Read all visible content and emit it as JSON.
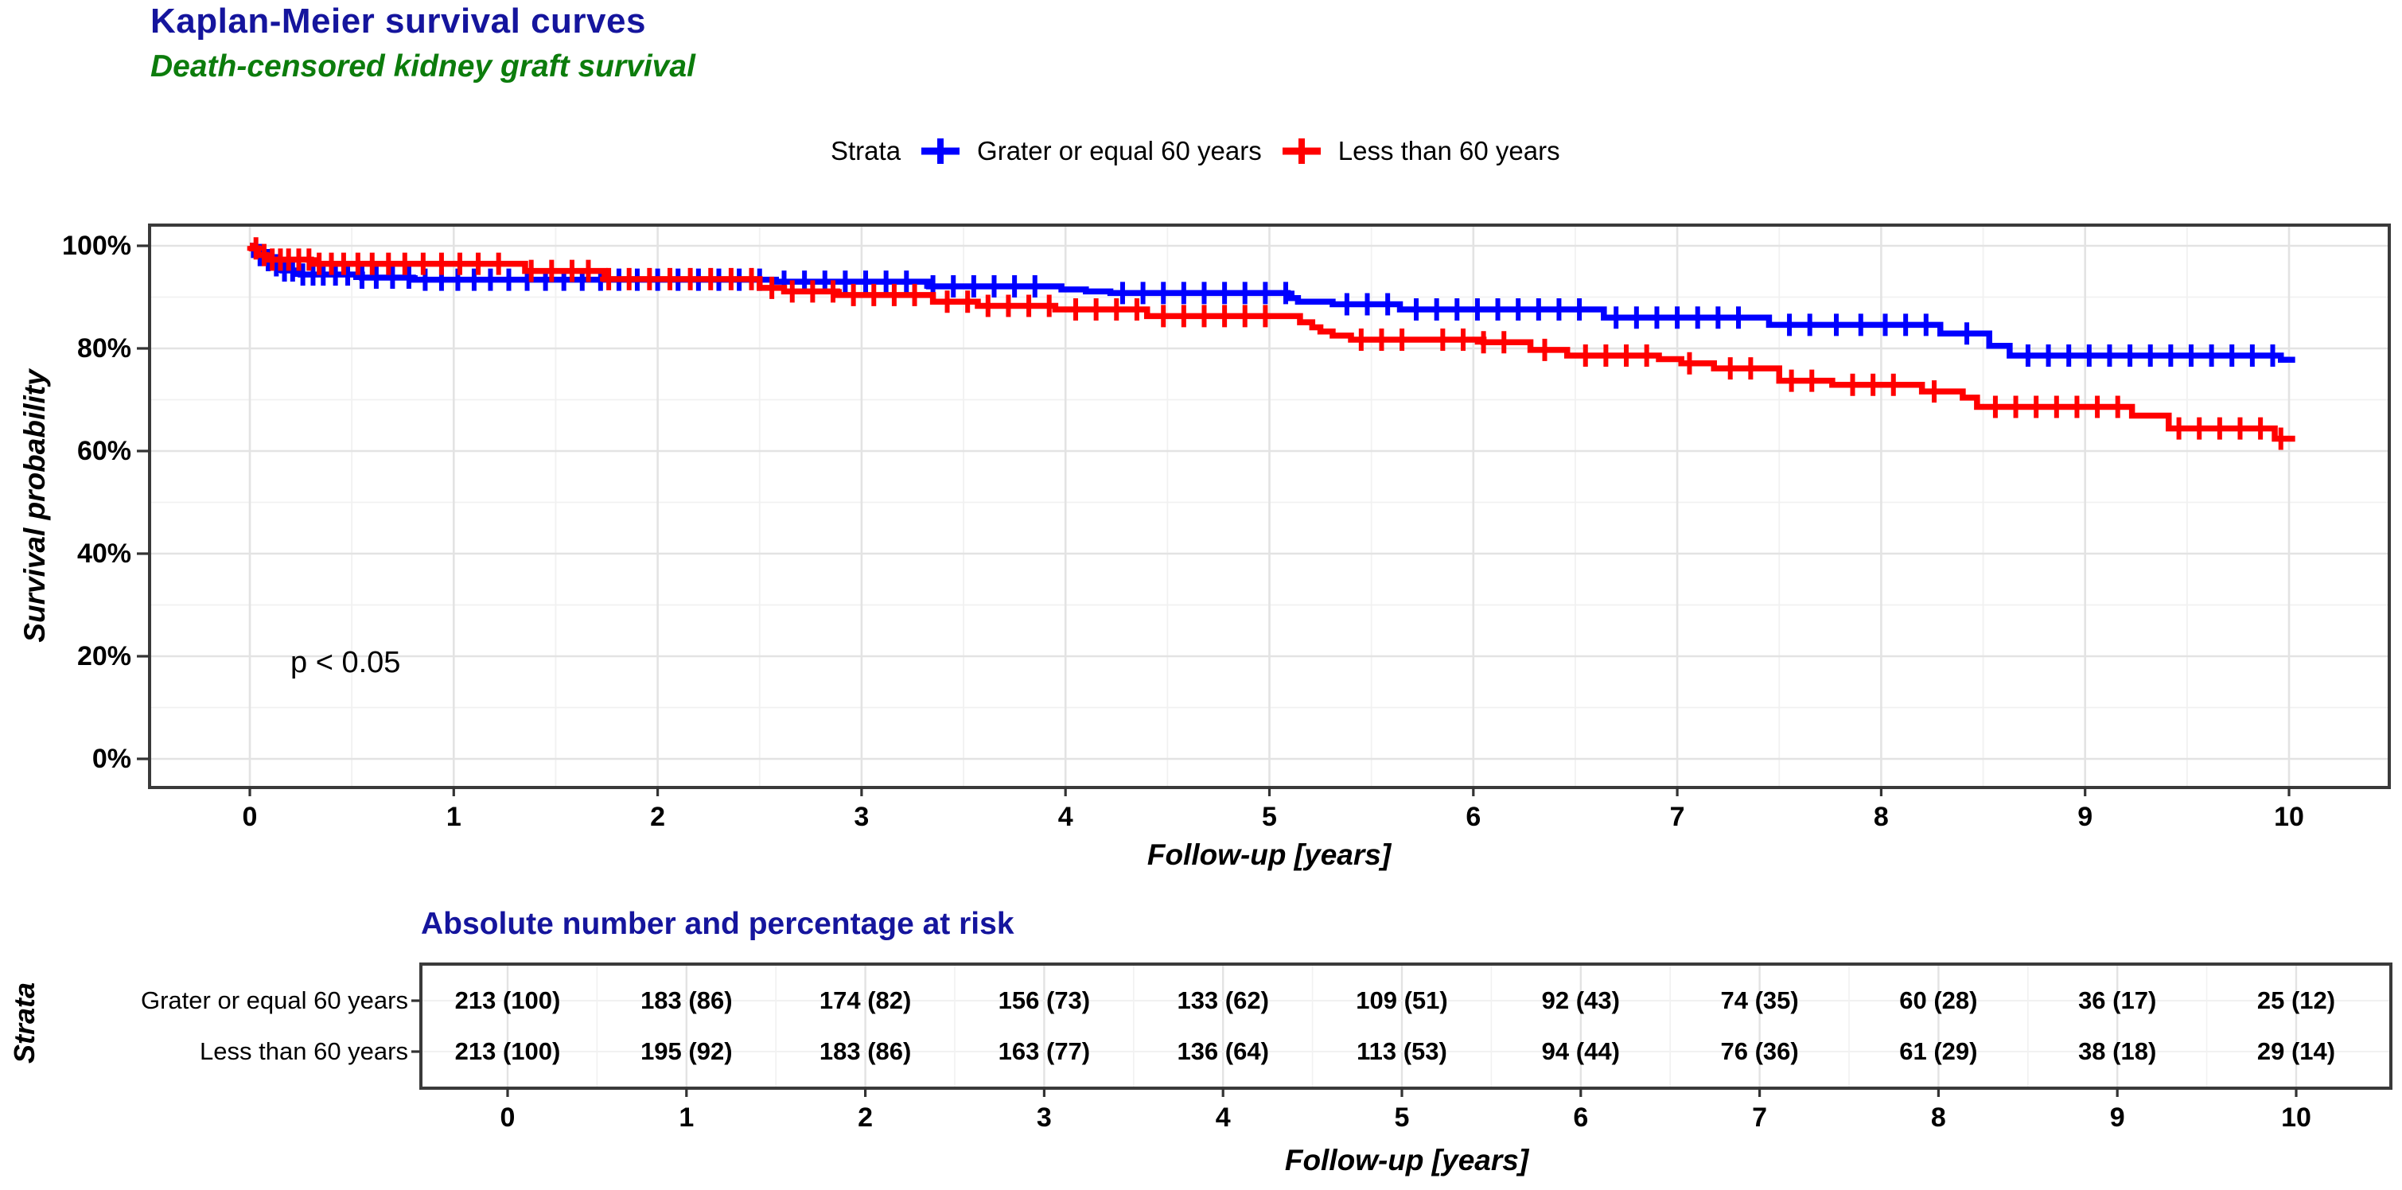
{
  "title": "Kaplan-Meier survival curves",
  "subtitle": "Death-censored kidney graft survival",
  "pvalue": "p < 0.05",
  "colors": {
    "title": "#15159d",
    "subtitle": "#0c7c0c",
    "group_ge60": "#0000ff",
    "group_lt60": "#ff0000",
    "grid_major": "#e3e3e3",
    "grid_minor": "#f1f1f1",
    "panel_border": "#3a3a3a"
  },
  "legend": {
    "label": "Strata",
    "items": [
      {
        "label": "Grater or equal 60 years",
        "color": "#0000ff"
      },
      {
        "label": "Less than 60 years",
        "color": "#ff0000"
      }
    ]
  },
  "axes": {
    "x_title": "Follow-up [years]",
    "y_title": "Survival probability",
    "x_ticks": [
      0,
      1,
      2,
      3,
      4,
      5,
      6,
      7,
      8,
      9,
      10
    ],
    "y_ticks": [
      {
        "label": "100%",
        "value": 100
      },
      {
        "label": "80%",
        "value": 80
      },
      {
        "label": "60%",
        "value": 60
      },
      {
        "label": "40%",
        "value": 40
      },
      {
        "label": "20%",
        "value": 20
      },
      {
        "label": "0%",
        "value": 0
      }
    ]
  },
  "risk_table": {
    "title": "Absolute number and percentage at risk",
    "strata_label": "Strata",
    "x_title": "Follow-up [years]",
    "x_ticks": [
      0,
      1,
      2,
      3,
      4,
      5,
      6,
      7,
      8,
      9,
      10
    ],
    "rows": [
      {
        "label": "Grater or equal 60 years",
        "values": [
          "213 (100)",
          "183 (86)",
          "174 (82)",
          "156 (73)",
          "133 (62)",
          "109 (51)",
          "92 (43)",
          "74 (35)",
          "60 (28)",
          "36 (17)",
          "25 (12)"
        ]
      },
      {
        "label": "Less than 60 years",
        "values": [
          "213 (100)",
          "195 (92)",
          "183 (86)",
          "163 (77)",
          "136 (64)",
          "113 (53)",
          "94 (44)",
          "76 (36)",
          "61 (29)",
          "38 (18)",
          "29 (14)"
        ]
      }
    ]
  },
  "chart_data": {
    "type": "line",
    "subtype": "kaplan-meier-step",
    "title": "Kaplan-Meier survival curves",
    "subtitle": "Death-censored kidney graft survival",
    "xlabel": "Follow-up [years]",
    "ylabel": "Survival probability",
    "xlim": [
      0,
      10
    ],
    "ylim_percent": [
      0,
      100
    ],
    "x_tick_step_years": 1,
    "y_tick_step_percent": 20,
    "grid": true,
    "legend_position": "top",
    "pvalue_annotation": "p < 0.05",
    "curve_end_time": 10.03,
    "series": [
      {
        "name": "Grater or equal 60 years",
        "color": "#0000ff",
        "steps_time_survivalpct": [
          [
            0,
            100
          ],
          [
            0.02,
            98.2
          ],
          [
            0.06,
            97.2
          ],
          [
            0.1,
            96.2
          ],
          [
            0.16,
            95.2
          ],
          [
            0.25,
            94.4
          ],
          [
            0.55,
            93.8
          ],
          [
            0.8,
            93.4
          ],
          [
            2.58,
            93.0
          ],
          [
            3.33,
            92.1
          ],
          [
            3.98,
            91.5
          ],
          [
            4.1,
            91.1
          ],
          [
            4.22,
            90.8
          ],
          [
            5.09,
            89.8
          ],
          [
            5.14,
            89.1
          ],
          [
            5.31,
            88.6
          ],
          [
            5.64,
            87.6
          ],
          [
            6.64,
            86.0
          ],
          [
            7.45,
            84.6
          ],
          [
            8.29,
            82.9
          ],
          [
            8.53,
            80.5
          ],
          [
            8.63,
            78.6
          ],
          [
            9.96,
            77.8
          ]
        ],
        "censor_times": [
          0.05,
          0.09,
          0.13,
          0.17,
          0.21,
          0.26,
          0.31,
          0.36,
          0.42,
          0.48,
          0.55,
          0.62,
          0.7,
          0.78,
          0.86,
          0.94,
          1.02,
          1.1,
          1.18,
          1.27,
          1.36,
          1.45,
          1.54,
          1.63,
          1.72,
          1.81,
          1.9,
          2.0,
          2.1,
          2.2,
          2.3,
          2.4,
          2.5,
          2.62,
          2.72,
          2.82,
          2.92,
          3.02,
          3.12,
          3.22,
          3.35,
          3.45,
          3.55,
          3.65,
          3.75,
          3.85,
          4.28,
          4.38,
          4.48,
          4.58,
          4.68,
          4.78,
          4.88,
          4.98,
          5.08,
          5.38,
          5.48,
          5.58,
          5.72,
          5.82,
          5.92,
          6.02,
          6.12,
          6.22,
          6.32,
          6.42,
          6.52,
          6.7,
          6.8,
          6.9,
          7.0,
          7.1,
          7.2,
          7.3,
          7.55,
          7.65,
          7.78,
          7.9,
          8.02,
          8.12,
          8.22,
          8.42,
          8.72,
          8.82,
          8.92,
          9.02,
          9.12,
          9.22,
          9.32,
          9.42,
          9.52,
          9.62,
          9.72,
          9.82,
          9.92
        ]
      },
      {
        "name": "Less than 60 years",
        "color": "#ff0000",
        "steps_time_survivalpct": [
          [
            0,
            100
          ],
          [
            0.01,
            99.5
          ],
          [
            0.04,
            98.2
          ],
          [
            0.08,
            97.3
          ],
          [
            0.3,
            96.5
          ],
          [
            1.35,
            95.1
          ],
          [
            1.74,
            93.5
          ],
          [
            2.5,
            91.8
          ],
          [
            2.62,
            91.1
          ],
          [
            2.88,
            90.4
          ],
          [
            3.35,
            89.1
          ],
          [
            3.57,
            88.3
          ],
          [
            3.95,
            87.6
          ],
          [
            4.4,
            86.3
          ],
          [
            5.15,
            85.1
          ],
          [
            5.21,
            84.1
          ],
          [
            5.25,
            83.3
          ],
          [
            5.31,
            82.5
          ],
          [
            5.4,
            81.7
          ],
          [
            6.05,
            81.2
          ],
          [
            6.28,
            79.7
          ],
          [
            6.46,
            78.6
          ],
          [
            6.91,
            77.9
          ],
          [
            7.02,
            77.1
          ],
          [
            7.18,
            76.1
          ],
          [
            7.5,
            73.7
          ],
          [
            7.76,
            72.9
          ],
          [
            8.2,
            71.6
          ],
          [
            8.4,
            70.4
          ],
          [
            8.47,
            68.6
          ],
          [
            9.23,
            66.9
          ],
          [
            9.41,
            64.4
          ],
          [
            9.93,
            62.4
          ]
        ],
        "censor_times": [
          0.03,
          0.07,
          0.11,
          0.15,
          0.19,
          0.24,
          0.29,
          0.34,
          0.4,
          0.46,
          0.53,
          0.6,
          0.68,
          0.76,
          0.85,
          0.94,
          1.03,
          1.12,
          1.22,
          1.38,
          1.48,
          1.58,
          1.66,
          1.76,
          1.86,
          1.96,
          2.06,
          2.16,
          2.26,
          2.36,
          2.46,
          2.56,
          2.66,
          2.76,
          2.86,
          2.96,
          3.06,
          3.16,
          3.26,
          3.42,
          3.52,
          3.62,
          3.72,
          3.82,
          3.92,
          4.05,
          4.15,
          4.25,
          4.35,
          4.48,
          4.58,
          4.68,
          4.78,
          4.88,
          4.98,
          5.45,
          5.55,
          5.65,
          5.85,
          5.95,
          6.05,
          6.15,
          6.35,
          6.55,
          6.65,
          6.75,
          6.85,
          7.06,
          7.26,
          7.36,
          7.56,
          7.66,
          7.86,
          7.96,
          8.06,
          8.26,
          8.56,
          8.66,
          8.76,
          8.86,
          8.96,
          9.06,
          9.16,
          9.46,
          9.56,
          9.66,
          9.76,
          9.86,
          9.96
        ]
      }
    ],
    "risk_table": {
      "title": "Absolute number and percentage at risk",
      "row_names": [
        "Grater or equal 60 years",
        "Less than 60 years"
      ],
      "times": [
        0,
        1,
        2,
        3,
        4,
        5,
        6,
        7,
        8,
        9,
        10
      ],
      "n_at_risk": [
        [
          213,
          183,
          174,
          156,
          133,
          109,
          92,
          74,
          60,
          36,
          25
        ],
        [
          213,
          195,
          183,
          163,
          136,
          113,
          94,
          76,
          61,
          38,
          29
        ]
      ],
      "pct_at_risk": [
        [
          100,
          86,
          82,
          73,
          62,
          51,
          43,
          35,
          28,
          17,
          12
        ],
        [
          100,
          92,
          86,
          77,
          64,
          53,
          44,
          36,
          29,
          18,
          14
        ]
      ]
    }
  }
}
